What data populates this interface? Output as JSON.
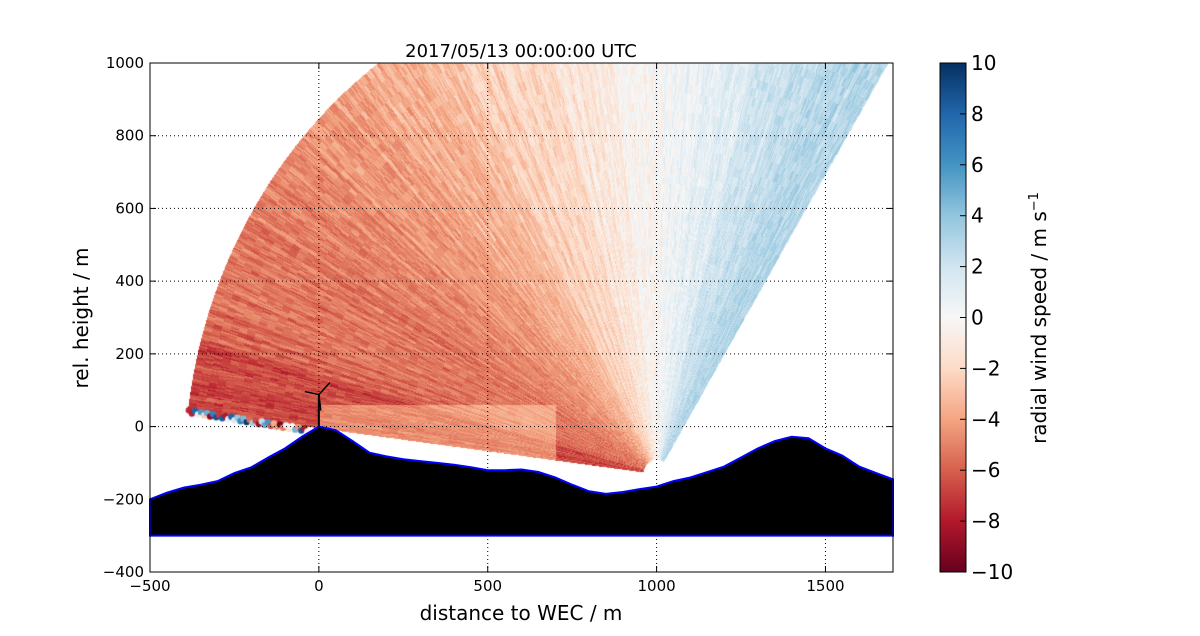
{
  "chart_data": {
    "type": "heatmap",
    "title": "2017/05/13 00:00:00 UTC",
    "xlabel": "distance to WEC / m",
    "ylabel": "rel. height / m",
    "xlim": [
      -500,
      1700
    ],
    "ylim": [
      -400,
      1000
    ],
    "xticks": [
      -500,
      0,
      500,
      1000,
      1500
    ],
    "yticks": [
      -400,
      -200,
      0,
      200,
      400,
      600,
      800,
      1000
    ],
    "grid": true,
    "colormap": "RdBu",
    "colorbar": {
      "label": "radial wind speed / m s",
      "label_superscript": "−1",
      "range": [
        -10,
        10
      ],
      "ticks": [
        "10",
        "8",
        "6",
        "4",
        "2",
        "0",
        "−2",
        "−4",
        "−6",
        "−8",
        "−10"
      ],
      "tick_values": [
        10,
        8,
        6,
        4,
        2,
        0,
        -2,
        -4,
        -6,
        -8,
        -10
      ],
      "colors": [
        "#67001f",
        "#b2182b",
        "#d6604d",
        "#f4a582",
        "#fddbc7",
        "#f7f7f7",
        "#d1e5f0",
        "#92c5de",
        "#4393c3",
        "#2166ac",
        "#053061"
      ]
    },
    "scan": {
      "apex": [
        1000,
        -130
      ],
      "range_m": 1400,
      "azimuth_deg": [
        58.8,
        172.8
      ],
      "radial_speed_pattern": "about −6 m/s at the left edge, close to 0 above x≈1000 m, about +3 m/s at the right edge"
    },
    "terrain": {
      "x": [
        -500,
        -450,
        -400,
        -350,
        -300,
        -250,
        -200,
        -150,
        -100,
        -50,
        0,
        50,
        100,
        150,
        200,
        250,
        300,
        350,
        400,
        450,
        500,
        550,
        600,
        650,
        700,
        750,
        800,
        850,
        900,
        950,
        1000,
        1050,
        1100,
        1150,
        1200,
        1250,
        1300,
        1350,
        1400,
        1450,
        1500,
        1550,
        1600,
        1650,
        1700
      ],
      "y": [
        -200,
        -182,
        -168,
        -160,
        -150,
        -128,
        -112,
        -85,
        -60,
        -28,
        0,
        -10,
        -40,
        -72,
        -82,
        -90,
        -95,
        -100,
        -105,
        -112,
        -120,
        -120,
        -118,
        -125,
        -140,
        -160,
        -178,
        -185,
        -180,
        -172,
        -165,
        -150,
        -140,
        -125,
        -110,
        -85,
        -60,
        -40,
        -28,
        -32,
        -60,
        -80,
        -110,
        -128,
        -145
      ],
      "base": -300,
      "fill": "#000000",
      "outline": "#0000ff"
    },
    "wec_position": [
      0,
      0
    ]
  }
}
